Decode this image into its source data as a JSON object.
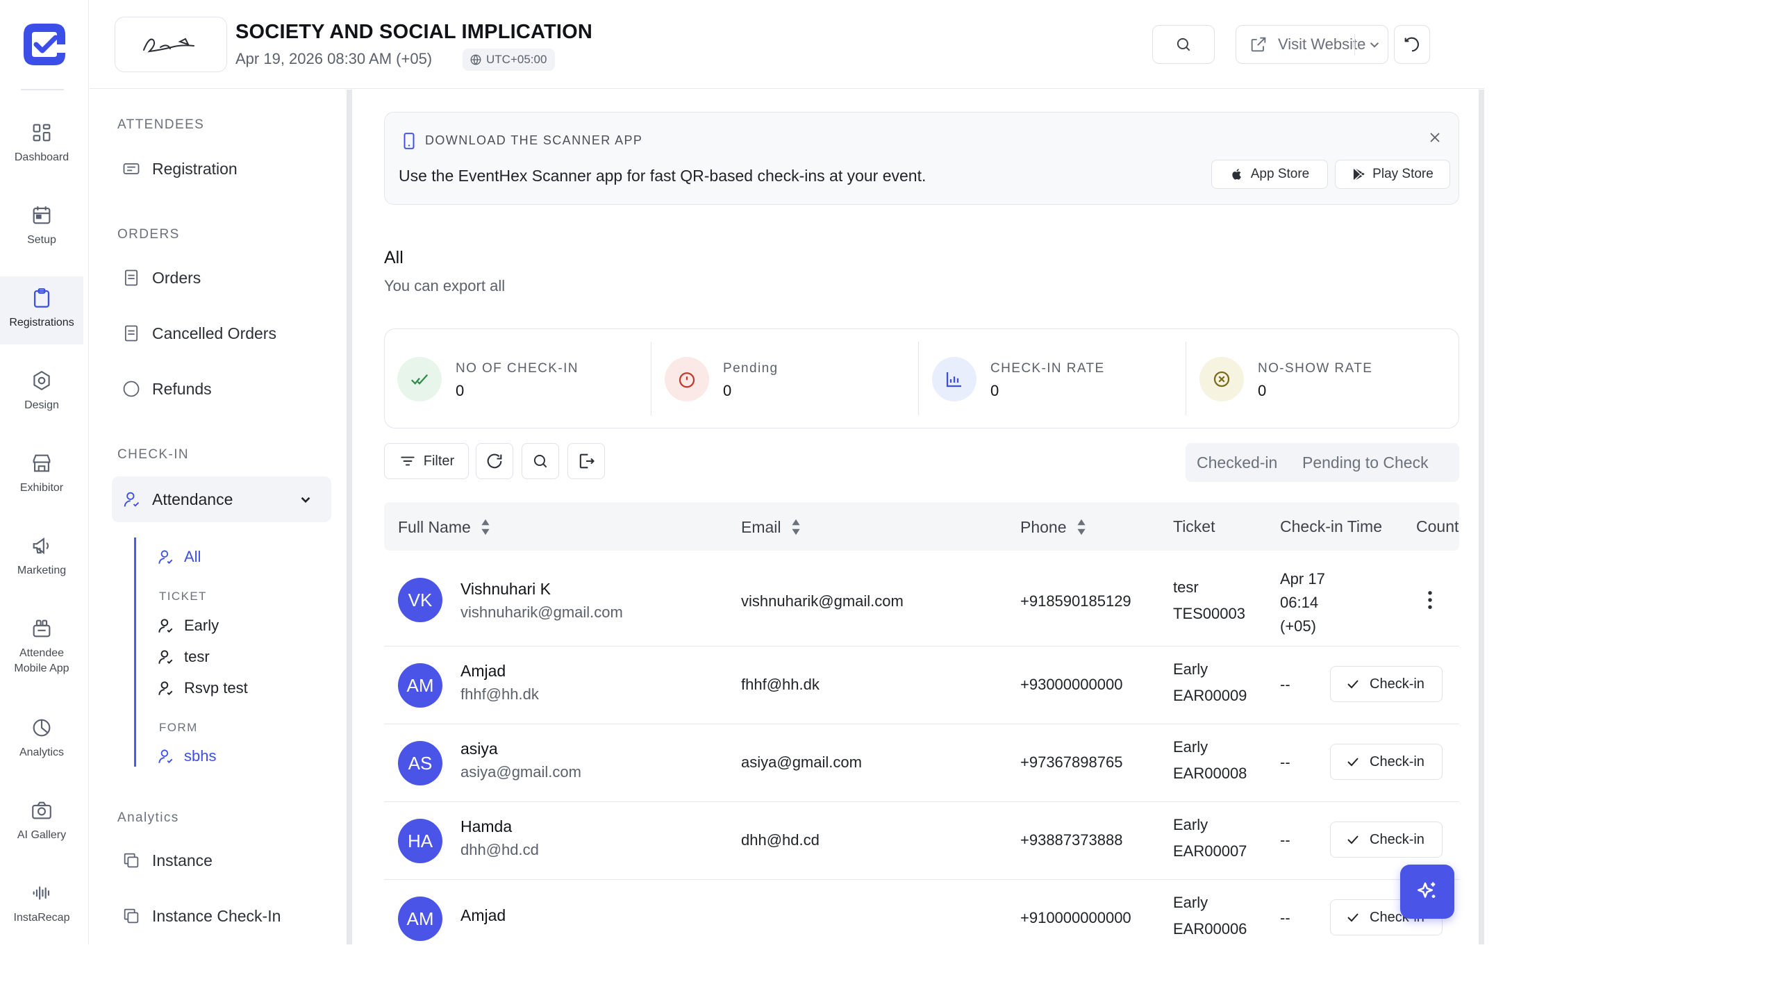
{
  "rail": {
    "items": [
      {
        "label": "Dashboard",
        "icon": "dashboard-icon"
      },
      {
        "label": "Setup",
        "icon": "calendar-icon"
      },
      {
        "label": "Registrations",
        "icon": "clipboard-icon",
        "active": true
      },
      {
        "label": "Design",
        "icon": "design-icon"
      },
      {
        "label": "Exhibitor",
        "icon": "store-icon"
      },
      {
        "label": "Marketing",
        "icon": "megaphone-icon"
      },
      {
        "label": "Attendee\nMobile App",
        "icon": "mobile-app-icon"
      },
      {
        "label": "Analytics",
        "icon": "pie-chart-icon"
      },
      {
        "label": "AI Gallery",
        "icon": "camera-icon"
      },
      {
        "label": "InstaRecap",
        "icon": "waveform-icon"
      }
    ]
  },
  "header": {
    "title": "SOCIETY AND SOCIAL IMPLICATION",
    "date": "Apr 19, 2026 08:30 AM (+05)",
    "timezone": "UTC+05:00",
    "visit_label": "Visit Website"
  },
  "subnav": {
    "attendees_title": "ATTENDEES",
    "registration": "Registration",
    "orders_title": "ORDERS",
    "orders": "Orders",
    "cancelled_orders": "Cancelled Orders",
    "refunds": "Refunds",
    "checkin_title": "CHECK-IN",
    "attendance": "Attendance",
    "all": "All",
    "ticket_caption": "TICKET",
    "tickets": [
      "Early",
      "tesr",
      "Rsvp test"
    ],
    "form_caption": "FORM",
    "form_item": "sbhs",
    "analytics_title": "Analytics",
    "instance": "Instance",
    "instance_checkin": "Instance Check-In"
  },
  "banner": {
    "caption": "DOWNLOAD THE SCANNER APP",
    "message": "Use the EventHex Scanner app for fast QR-based check-ins at your event.",
    "app_store": "App Store",
    "play_store": "Play Store"
  },
  "section": {
    "title": "All",
    "subtitle": "You can export all"
  },
  "stats": [
    {
      "label": "NO OF CHECK-IN",
      "value": "0",
      "color": "#e8f5ea"
    },
    {
      "label": "Pending",
      "value": "0",
      "color": "#fbe9e7"
    },
    {
      "label": "CHECK-IN RATE",
      "value": "0",
      "color": "#e8eefc"
    },
    {
      "label": "NO-SHOW RATE",
      "value": "0",
      "color": "#f6f3e1"
    }
  ],
  "toolbar": {
    "filter_label": "Filter",
    "seg_checked": "Checked-in",
    "seg_pending": "Pending to Check"
  },
  "table": {
    "headers": {
      "name": "Full Name",
      "email": "Email",
      "phone": "Phone",
      "ticket": "Ticket",
      "checkin_time": "Check-in Time",
      "count": "Count"
    },
    "checkin_label": "Check-in",
    "rows": [
      {
        "initials": "VK",
        "name": "Vishnuhari K",
        "email_sub": "vishnuharik@gmail.com",
        "email": "vishnuharik@gmail.com",
        "phone": "+918590185129",
        "ticket": "tesr",
        "code": "TES00003",
        "time": [
          "Apr 17",
          "06:14",
          "(+05)"
        ]
      },
      {
        "initials": "AM",
        "name": "Amjad",
        "email_sub": "fhhf@hh.dk",
        "email": "fhhf@hh.dk",
        "phone": "+93000000000",
        "ticket": "Early",
        "code": "EAR00009",
        "time": "--"
      },
      {
        "initials": "AS",
        "name": "asiya",
        "email_sub": "asiya@gmail.com",
        "email": "asiya@gmail.com",
        "phone": "+97367898765",
        "ticket": "Early",
        "code": "EAR00008",
        "time": "--"
      },
      {
        "initials": "HA",
        "name": "Hamda",
        "email_sub": "dhh@hd.cd",
        "email": "dhh@hd.cd",
        "phone": "+93887373888",
        "ticket": "Early",
        "code": "EAR00007",
        "time": "--"
      },
      {
        "initials": "AM",
        "name": "Amjad",
        "email_sub": "",
        "email": "",
        "phone": "+910000000000",
        "ticket": "Early",
        "code": "EAR00006",
        "time": "--"
      }
    ]
  },
  "colors": {
    "accent": "#4a55e8",
    "brand": "#3b4ee8"
  }
}
